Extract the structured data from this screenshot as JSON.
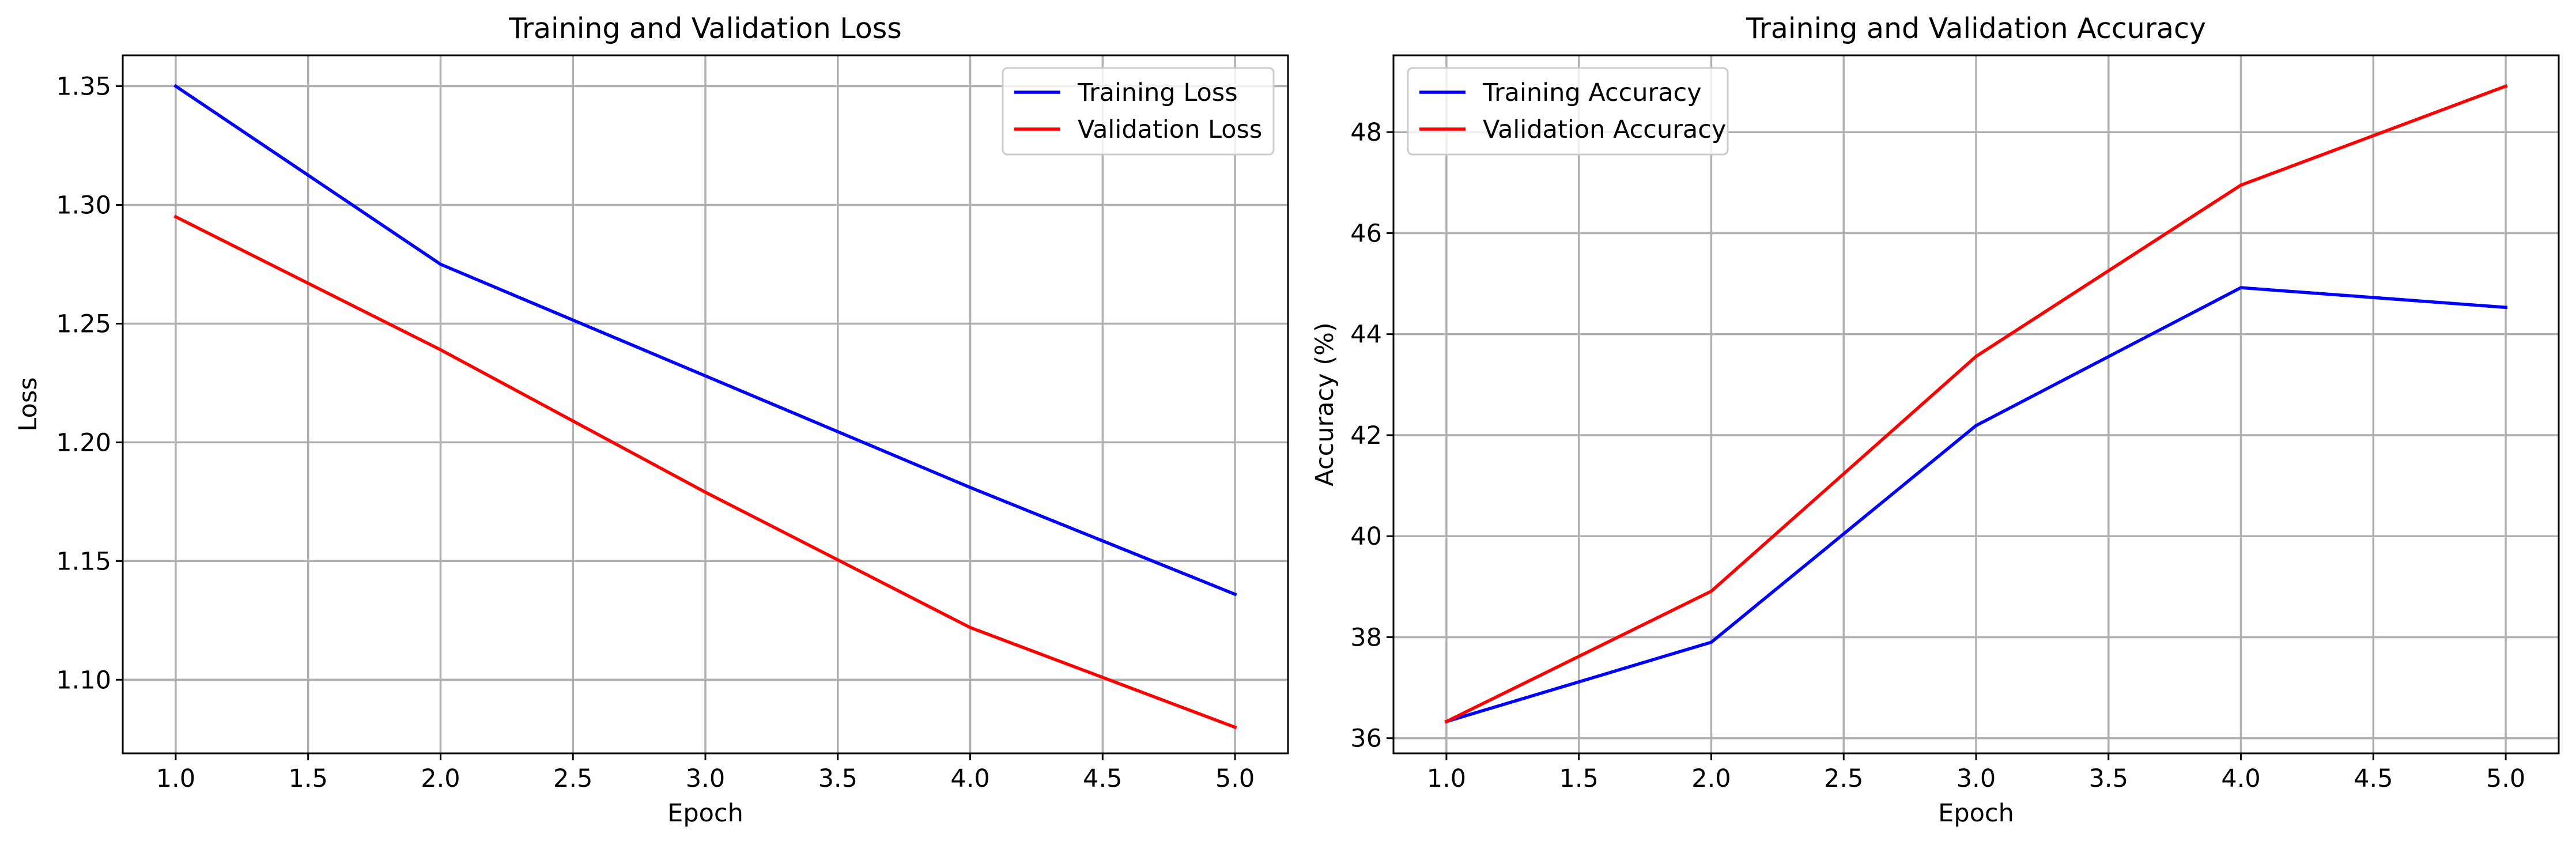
{
  "chart_data": [
    {
      "type": "line",
      "title": "Training and Validation Loss",
      "xlabel": "Epoch",
      "ylabel": "Loss",
      "xlim": [
        0.8,
        5.2
      ],
      "ylim": [
        1.069,
        1.363
      ],
      "xticks": [
        "1.0",
        "1.5",
        "2.0",
        "2.5",
        "3.0",
        "3.5",
        "4.0",
        "4.5",
        "5.0"
      ],
      "yticks": [
        "1.10",
        "1.15",
        "1.20",
        "1.25",
        "1.30",
        "1.35"
      ],
      "x": [
        1,
        2,
        3,
        4,
        5
      ],
      "series": [
        {
          "name": "Training Loss",
          "color": "#0000ff",
          "values": [
            1.35,
            1.275,
            1.228,
            1.181,
            1.136
          ]
        },
        {
          "name": "Validation Loss",
          "color": "#ff0000",
          "values": [
            1.295,
            1.239,
            1.179,
            1.122,
            1.08
          ]
        }
      ],
      "grid": true,
      "legend": "upper right"
    },
    {
      "type": "line",
      "title": "Training and Validation Accuracy",
      "xlabel": "Epoch",
      "ylabel": "Accuracy (%)",
      "xlim": [
        0.8,
        5.2
      ],
      "ylim": [
        35.7,
        49.52
      ],
      "xticks": [
        "1.0",
        "1.5",
        "2.0",
        "2.5",
        "3.0",
        "3.5",
        "4.0",
        "4.5",
        "5.0"
      ],
      "yticks": [
        "36",
        "38",
        "40",
        "42",
        "44",
        "46",
        "48"
      ],
      "x": [
        1,
        2,
        3,
        4,
        5
      ],
      "series": [
        {
          "name": "Training Accuracy",
          "color": "#0000ff",
          "values": [
            36.33,
            37.9,
            42.19,
            44.92,
            44.53
          ]
        },
        {
          "name": "Validation Accuracy",
          "color": "#ff0000",
          "values": [
            36.33,
            38.91,
            43.56,
            46.95,
            48.91
          ]
        }
      ],
      "grid": true,
      "legend": "upper left"
    }
  ]
}
